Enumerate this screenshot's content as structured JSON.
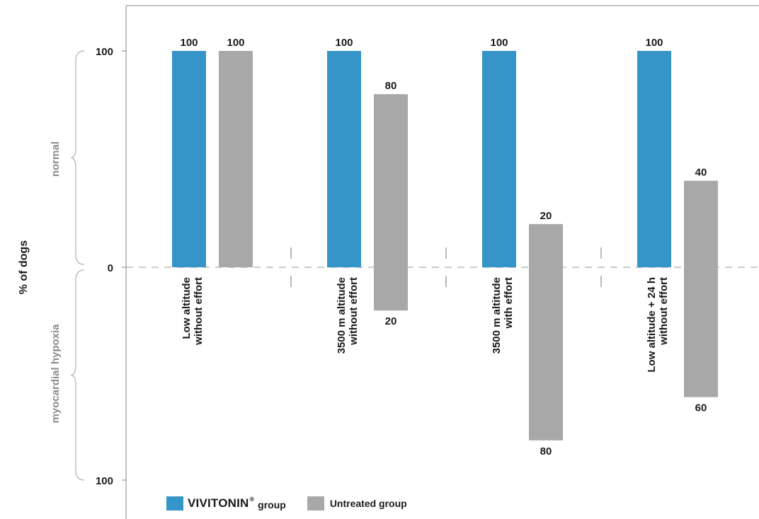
{
  "chart_data": {
    "type": "bar",
    "ylabel": "% of dogs",
    "upper_label": "normal",
    "lower_label": "myocardial hypoxia",
    "y_ticks": [
      "100",
      "0",
      "100"
    ],
    "ylim": [
      -100,
      100
    ],
    "categories": [
      [
        "Low altitude",
        "without effort"
      ],
      [
        "3500 m altitude",
        "without effort"
      ],
      [
        "3500 m altitude",
        "with effort"
      ],
      [
        "Low altitude + 24 h",
        "without effort"
      ]
    ],
    "series": [
      {
        "name": "VIVITONIN® group",
        "color": "#3595c8",
        "normal": [
          100,
          100,
          100,
          100
        ],
        "hypoxia": [
          0,
          0,
          0,
          0
        ]
      },
      {
        "name": "Untreated group",
        "color": "#a8a8a8",
        "normal": [
          100,
          80,
          20,
          40
        ],
        "hypoxia": [
          0,
          20,
          80,
          60
        ]
      }
    ]
  },
  "legend": {
    "vivitonin_brand": "VIVITONIN",
    "vivitonin_reg": "®",
    "vivitonin_suffix": "group",
    "untreated_label": "Untreated group"
  }
}
